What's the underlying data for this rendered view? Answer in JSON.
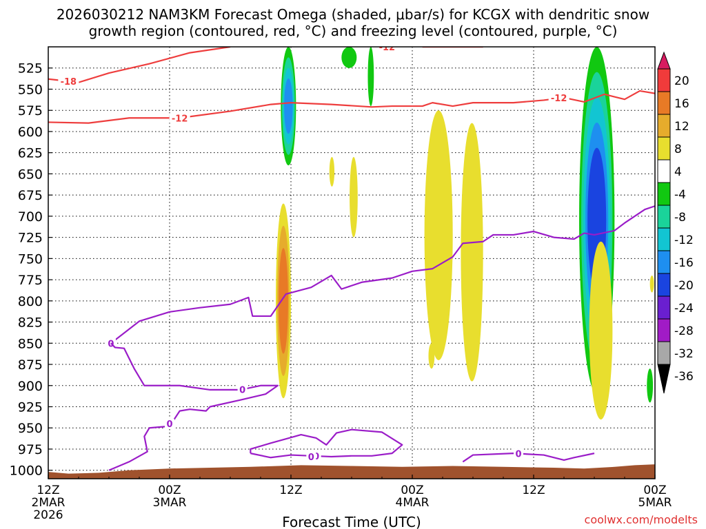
{
  "chart_data": {
    "type": "heatmap",
    "title_line1": "2026030212 NAM3KM Forecast Omega (shaded, μbar/s) for KCGX with dendritic snow",
    "title_line2": "growth region (contoured, red, °C) and freezing level (contoured, purple, °C)",
    "xlabel": "Forecast Time (UTC)",
    "credit": "coolwx.com/modelts",
    "x_ticks": [
      {
        "hour": 0,
        "l1": "12Z",
        "l2": "2MAR",
        "l3": "2026"
      },
      {
        "hour": 12,
        "l1": "00Z",
        "l2": "3MAR",
        "l3": ""
      },
      {
        "hour": 24,
        "l1": "12Z",
        "l2": "",
        "l3": ""
      },
      {
        "hour": 36,
        "l1": "00Z",
        "l2": "4MAR",
        "l3": ""
      },
      {
        "hour": 48,
        "l1": "12Z",
        "l2": "",
        "l3": ""
      },
      {
        "hour": 60,
        "l1": "00Z",
        "l2": "5MAR",
        "l3": ""
      }
    ],
    "xlim_hours": [
      0,
      60
    ],
    "ylim_hpa": [
      500,
      1010
    ],
    "y_ticks": [
      525,
      550,
      575,
      600,
      625,
      650,
      675,
      700,
      725,
      750,
      775,
      800,
      825,
      850,
      875,
      900,
      925,
      950,
      975,
      1000
    ],
    "colorbar": {
      "labels": [
        "20",
        "16",
        "12",
        "8",
        "4",
        "-4",
        "-8",
        "-12",
        "-16",
        "-20",
        "-24",
        "-28",
        "-32",
        "-36"
      ],
      "levels": [
        20,
        16,
        12,
        8,
        4,
        -4,
        -8,
        -12,
        -16,
        -20,
        -24,
        -28,
        -32,
        -36
      ],
      "colors": [
        "#d81b60",
        "#f03b3b",
        "#e87a26",
        "#e6ac2c",
        "#e8de2e",
        "#ffffff",
        "#11c811",
        "#1ad39a",
        "#12c5d2",
        "#1e8ff0",
        "#1a44e0",
        "#6a1fd0",
        "#a11bc6",
        "#a8a8a8",
        "#000000"
      ]
    },
    "omega_features": [
      {
        "kind": "upward",
        "t0": 23,
        "t1": 24.5,
        "p_top": 500,
        "p_bot": 640,
        "peak": -16
      },
      {
        "kind": "upward",
        "t0": 29,
        "t1": 30.5,
        "p_top": 500,
        "p_bot": 525,
        "peak": -6
      },
      {
        "kind": "upward",
        "t0": 31.6,
        "t1": 32.2,
        "p_top": 500,
        "p_bot": 570,
        "peak": -5
      },
      {
        "kind": "upward",
        "t0": 52.5,
        "t1": 56,
        "p_top": 500,
        "p_bot": 910,
        "peak": -22
      },
      {
        "kind": "upward",
        "t0": 59.2,
        "t1": 59.8,
        "p_top": 880,
        "p_bot": 920,
        "peak": -6
      },
      {
        "kind": "downward",
        "t0": 22.5,
        "t1": 24,
        "p_top": 685,
        "p_bot": 915,
        "peak": 12
      },
      {
        "kind": "downward",
        "t0": 37.2,
        "t1": 40,
        "p_top": 575,
        "p_bot": 870,
        "peak": 6
      },
      {
        "kind": "downward",
        "t0": 40.8,
        "t1": 43,
        "p_top": 590,
        "p_bot": 895,
        "peak": 6
      },
      {
        "kind": "downward",
        "t0": 53.5,
        "t1": 55.8,
        "p_top": 730,
        "p_bot": 940,
        "peak": 6
      },
      {
        "kind": "downward",
        "t0": 27.8,
        "t1": 28.3,
        "p_top": 630,
        "p_bot": 665,
        "peak": 5
      },
      {
        "kind": "downward",
        "t0": 29.8,
        "t1": 30.6,
        "p_top": 630,
        "p_bot": 725,
        "peak": 5
      },
      {
        "kind": "downward",
        "t0": 37.6,
        "t1": 38.2,
        "p_top": 850,
        "p_bot": 880,
        "peak": 5
      },
      {
        "kind": "downward",
        "t0": 59.5,
        "t1": 59.9,
        "p_top": 770,
        "p_bot": 790,
        "peak": 5
      }
    ],
    "dgz_contours": [
      {
        "label": "-18",
        "label_hour": 2,
        "points": [
          [
            0,
            538
          ],
          [
            3,
            542
          ],
          [
            6,
            531
          ],
          [
            10,
            520
          ],
          [
            14,
            507
          ],
          [
            18,
            500
          ]
        ]
      },
      {
        "label": "-12",
        "label_hour": 13,
        "points": [
          [
            0,
            589
          ],
          [
            4,
            590
          ],
          [
            8,
            584
          ],
          [
            13,
            584
          ],
          [
            18,
            576
          ],
          [
            22,
            568
          ],
          [
            24,
            566
          ],
          [
            28,
            568
          ],
          [
            32,
            571
          ],
          [
            34,
            570
          ],
          [
            37,
            570
          ],
          [
            38,
            566
          ],
          [
            40,
            570
          ],
          [
            42,
            566
          ],
          [
            46,
            566
          ],
          [
            49,
            563
          ],
          [
            51,
            560
          ],
          [
            53,
            565
          ],
          [
            55,
            556
          ],
          [
            57,
            562
          ],
          [
            58.5,
            552
          ],
          [
            60,
            555
          ]
        ]
      },
      {
        "label": "-12",
        "label_hour": 33.5,
        "points": [
          [
            37,
            500
          ],
          [
            43,
            500
          ]
        ]
      },
      {
        "label": "-12",
        "label_hour": 50.5,
        "points": [
          [
            50,
            560
          ]
        ]
      }
    ],
    "freezing_contours": [
      {
        "label": "0",
        "label_hour": 6.2,
        "points": [
          [
            6.2,
            850
          ],
          [
            7.5,
            838
          ],
          [
            9,
            824
          ],
          [
            12,
            813
          ],
          [
            15,
            808
          ],
          [
            18,
            804
          ],
          [
            19.8,
            796
          ],
          [
            20.2,
            818
          ],
          [
            22,
            818
          ],
          [
            23.5,
            792
          ],
          [
            26,
            784
          ],
          [
            28,
            770
          ],
          [
            29,
            786
          ],
          [
            31,
            778
          ],
          [
            34,
            773
          ],
          [
            36,
            765
          ],
          [
            38,
            762
          ],
          [
            40,
            748
          ],
          [
            41,
            732
          ],
          [
            43,
            730
          ],
          [
            44,
            722
          ],
          [
            46,
            722
          ],
          [
            48,
            718
          ],
          [
            50,
            725
          ],
          [
            52,
            727
          ],
          [
            53,
            720
          ],
          [
            54,
            722
          ],
          [
            56,
            717
          ],
          [
            57,
            708
          ],
          [
            59,
            692
          ],
          [
            60,
            688
          ]
        ]
      },
      {
        "label": "0",
        "label_hour": 19.2,
        "points": [
          [
            6.2,
            850
          ],
          [
            6.6,
            855
          ],
          [
            7.5,
            856
          ],
          [
            8.5,
            880
          ],
          [
            9.5,
            900
          ],
          [
            13,
            900
          ],
          [
            16,
            905
          ],
          [
            19,
            905
          ],
          [
            21,
            900
          ],
          [
            22.7,
            900
          ],
          [
            21.5,
            910
          ],
          [
            19,
            917
          ],
          [
            16,
            925
          ],
          [
            15.6,
            930
          ],
          [
            14,
            928
          ],
          [
            13,
            930
          ],
          [
            12,
            948
          ],
          [
            10,
            950
          ],
          [
            9.5,
            960
          ],
          [
            9.8,
            978
          ],
          [
            8,
            990
          ],
          [
            6,
            1000
          ]
        ]
      },
      {
        "label": "0",
        "label_hour": 12,
        "points": [
          [
            12,
            945
          ]
        ]
      },
      {
        "label": "0",
        "label_hour": 26.5,
        "points": [
          [
            20,
            980
          ],
          [
            22,
            985
          ],
          [
            24,
            982
          ],
          [
            26,
            983
          ],
          [
            28,
            984
          ],
          [
            30,
            983
          ],
          [
            32,
            983
          ],
          [
            34,
            980
          ],
          [
            35,
            970
          ],
          [
            33,
            955
          ],
          [
            30,
            952
          ],
          [
            28.5,
            956
          ],
          [
            27.5,
            970
          ],
          [
            26.5,
            962
          ],
          [
            25,
            958
          ],
          [
            22,
            968
          ],
          [
            20,
            975
          ],
          [
            20,
            980
          ]
        ]
      },
      {
        "label": "0",
        "label_hour": 26,
        "points": [
          [
            26,
            984
          ]
        ]
      },
      {
        "label": "0",
        "label_hour": 46.5,
        "points": [
          [
            41,
            990
          ],
          [
            42,
            982
          ],
          [
            46,
            980
          ],
          [
            49,
            982
          ],
          [
            51,
            988
          ],
          [
            52,
            985
          ],
          [
            54,
            980
          ]
        ]
      }
    ],
    "terrain": {
      "color": "#a0522d",
      "points_hpa": [
        [
          0,
          1002
        ],
        [
          2,
          1004
        ],
        [
          5,
          1003
        ],
        [
          8,
          1000
        ],
        [
          12,
          998
        ],
        [
          20,
          996
        ],
        [
          25,
          994
        ],
        [
          30,
          995
        ],
        [
          35,
          996
        ],
        [
          40,
          995
        ],
        [
          45,
          996
        ],
        [
          50,
          997
        ],
        [
          53,
          998
        ],
        [
          56,
          996
        ],
        [
          58,
          994
        ],
        [
          60,
          993
        ]
      ]
    }
  }
}
